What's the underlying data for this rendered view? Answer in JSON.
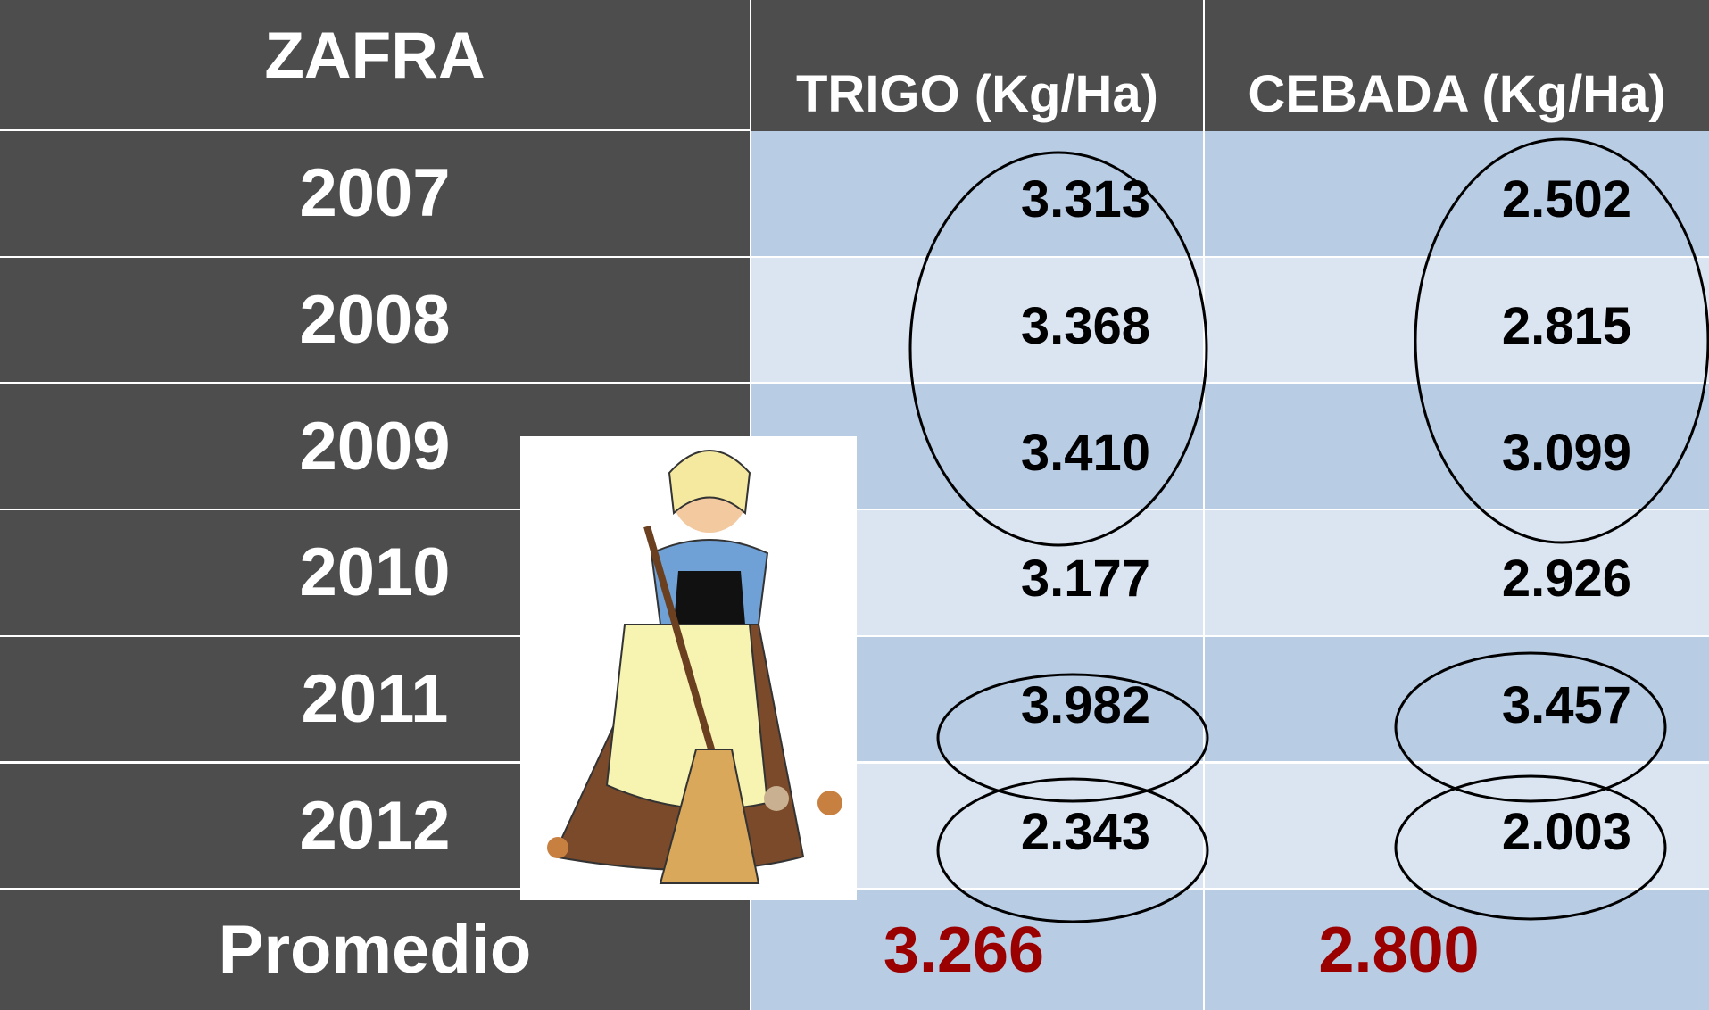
{
  "table": {
    "header": [
      "ZAFRA",
      "TRIGO (Kg/Ha)",
      "CEBADA (Kg/Ha)"
    ],
    "rows": [
      [
        "2007",
        "3.313",
        "2.502"
      ],
      [
        "2008",
        "3.368",
        "2.815"
      ],
      [
        "2009",
        "3.410",
        "3.099"
      ],
      [
        "2010",
        "3.177",
        "2.926"
      ],
      [
        "2011",
        "3.982",
        "3.457"
      ],
      [
        "2012",
        "2.343",
        "2.003"
      ]
    ],
    "footer": [
      "Promedio",
      "3.266",
      "2.800"
    ]
  }
}
